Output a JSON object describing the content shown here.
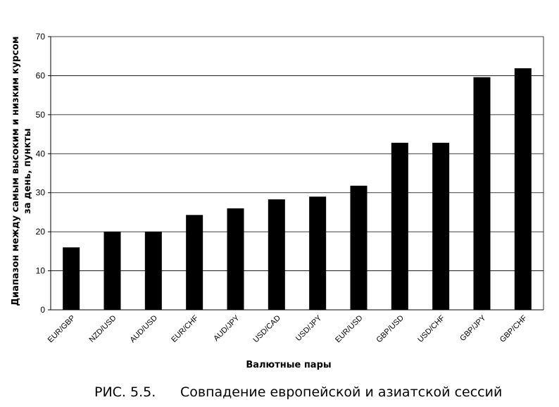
{
  "chart_data": {
    "type": "bar",
    "categories": [
      "EUR/GBP",
      "NZD/USD",
      "AUD/USD",
      "EUR/CHF",
      "AUD/JPY",
      "USD/CAD",
      "USD/JPY",
      "EUR/USD",
      "GBP/USD",
      "USD/CHF",
      "GBP/JPY",
      "GBP/CHF"
    ],
    "values": [
      16,
      20,
      20,
      24.3,
      26,
      28.3,
      29,
      31.8,
      42.8,
      42.8,
      59.6,
      61.9
    ],
    "ylim": [
      0,
      70
    ],
    "yticks": [
      0,
      10,
      20,
      30,
      40,
      50,
      60,
      70
    ],
    "ytick_labels": [
      "0",
      "10",
      "20",
      "30",
      "40",
      "50",
      "60",
      "70"
    ],
    "xlabel": "Валютные пары",
    "ylabel_line1": "Диапазон между самым высоким и низким курсом",
    "ylabel_line2": "за день, пункты",
    "grid": true,
    "legend": "none",
    "bar_color": "#000000",
    "grid_color": "#000000"
  },
  "caption": {
    "number": "РИС. 5.5.",
    "text": "Совпадение европейской и азиатской сессий"
  }
}
